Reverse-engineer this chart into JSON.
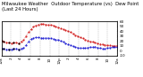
{
  "title": "Milwaukee Weather  Outdoor Temperature (vs)  Dew Point (Last 24 Hours)",
  "background_color": "#ffffff",
  "grid_color": "#999999",
  "temp_color": "#cc0000",
  "dew_color": "#0000cc",
  "dot_color": "#000000",
  "ylim": [
    -10,
    60
  ],
  "yticks": [
    -10,
    0,
    10,
    20,
    30,
    40,
    50,
    60
  ],
  "ytick_labels": [
    "-10",
    "0",
    "10",
    "20",
    "30",
    "40",
    "50",
    "60"
  ],
  "n_points": 48,
  "temp_values": [
    20,
    19,
    17,
    16,
    15,
    16,
    17,
    15,
    18,
    22,
    30,
    38,
    44,
    49,
    52,
    54,
    55,
    55,
    54,
    53,
    53,
    52,
    50,
    48,
    46,
    44,
    42,
    40,
    38,
    35,
    32,
    30,
    27,
    25,
    23,
    21,
    19,
    18,
    16,
    15,
    14,
    13,
    12,
    11,
    11,
    10,
    10,
    10
  ],
  "dew_values": [
    4,
    4,
    3,
    3,
    3,
    4,
    4,
    3,
    4,
    6,
    12,
    19,
    24,
    26,
    27,
    27,
    26,
    26,
    26,
    26,
    25,
    24,
    23,
    22,
    20,
    18,
    15,
    13,
    11,
    9,
    7,
    6,
    5,
    5,
    5,
    6,
    7,
    7,
    8,
    6,
    5,
    4,
    4,
    5,
    6,
    7,
    7,
    7
  ],
  "xlabel": "",
  "title_fontsize": 3.8,
  "tick_fontsize": 3.0,
  "figsize": [
    1.6,
    0.87
  ],
  "dpi": 100,
  "n_gridlines": 13,
  "xlim": [
    0,
    47
  ],
  "markersize": 1.0,
  "linewidth": 0.5,
  "spine_linewidth": 0.4
}
